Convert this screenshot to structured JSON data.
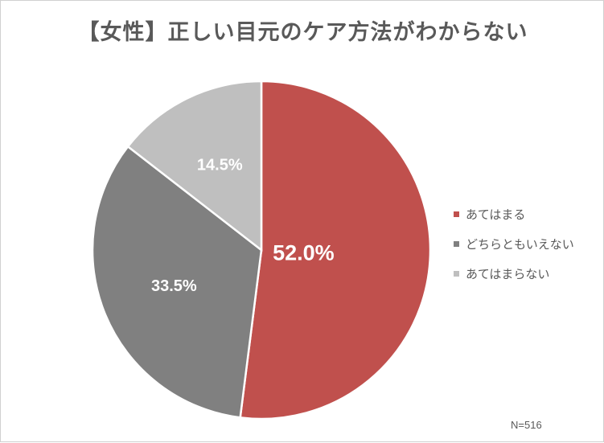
{
  "chart_data": {
    "type": "pie",
    "title": "【女性】正しい目元のケア方法がわからない",
    "categories": [
      "あてはまる",
      "どちらともいえない",
      "あてはまらない"
    ],
    "values": [
      52.0,
      33.5,
      14.5
    ],
    "data_labels": [
      "52.0%",
      "33.5%",
      "14.5%"
    ],
    "colors": [
      "#c0504d",
      "#808080",
      "#bfbfbf"
    ],
    "legend_position": "right",
    "note": "N=516"
  }
}
